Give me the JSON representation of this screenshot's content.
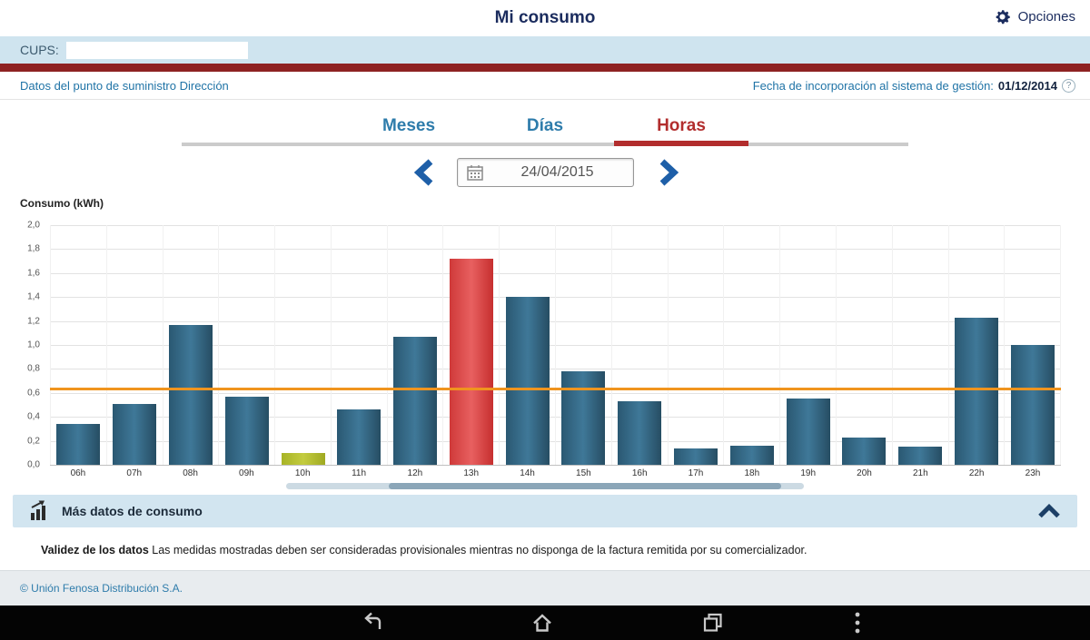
{
  "header": {
    "title": "Mi consumo",
    "options_label": "Opciones"
  },
  "cups": {
    "label": "CUPS:"
  },
  "info": {
    "left": "Datos del punto de suministro Dirección",
    "right_label": "Fecha de incorporación al sistema de gestión:",
    "right_value": "01/12/2014",
    "help_glyph": "?"
  },
  "tabs": [
    {
      "label": "Meses",
      "active": false
    },
    {
      "label": "Días",
      "active": false
    },
    {
      "label": "Horas",
      "active": true
    }
  ],
  "date_nav": {
    "date": "24/04/2015"
  },
  "chart_data": {
    "type": "bar",
    "title": "Consumo (kWh)",
    "xlabel": "",
    "ylabel": "Consumo (kWh)",
    "categories": [
      "06h",
      "07h",
      "08h",
      "09h",
      "10h",
      "11h",
      "12h",
      "13h",
      "14h",
      "15h",
      "16h",
      "17h",
      "18h",
      "19h",
      "20h",
      "21h",
      "22h",
      "23h"
    ],
    "values": [
      0.34,
      0.51,
      1.17,
      0.57,
      0.1,
      0.46,
      1.07,
      1.72,
      1.4,
      0.78,
      0.53,
      0.14,
      0.16,
      0.55,
      0.23,
      0.15,
      1.23,
      1.0
    ],
    "bar_colors": [
      "blue",
      "blue",
      "blue",
      "blue",
      "green",
      "blue",
      "blue",
      "red",
      "blue",
      "blue",
      "blue",
      "blue",
      "blue",
      "blue",
      "blue",
      "blue",
      "blue",
      "blue"
    ],
    "palette": {
      "blue": "#2e5f7d",
      "green": "#b3bd2c",
      "red": "#d84343",
      "average_line": "#f0941e"
    },
    "average_line": 0.62,
    "ylim": [
      0,
      2.0
    ],
    "ytick_labels": [
      "2,0",
      "1,8",
      "1,6",
      "1,4",
      "1,2",
      "1,0",
      "0,8",
      "0,6",
      "0,4",
      "0,2",
      "0,0"
    ],
    "grid": true,
    "legend": "none"
  },
  "more_data": {
    "label": "Más datos de consumo"
  },
  "validity": {
    "bold": "Validez de los datos",
    "text": " Las medidas mostradas deben ser consideradas provisionales mientras no disponga de la factura remitida por su comercializador."
  },
  "footer": {
    "copyright": "© Unión Fenosa Distribución S.A."
  },
  "colors": {
    "header_navy": "#1b2c5e",
    "cups_bar": "#cfe4ef",
    "maroon_bar": "#8e2222",
    "link_blue": "#1f73a6",
    "tab_active_red": "#b22d2d",
    "more_bar_bg": "#d2e5f0"
  }
}
